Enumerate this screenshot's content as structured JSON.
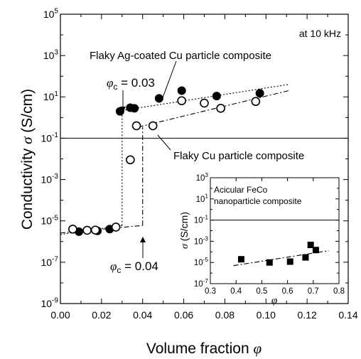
{
  "chart_data": [
    {
      "type": "scatter",
      "xlabel_text": "Volume fraction ",
      "xlabel_symbol": "φ",
      "ylabel_text": "Conductivity ",
      "ylabel_symbol": "σ",
      "ylabel_unit": " (S/cm)",
      "xlim": [
        0.0,
        0.14
      ],
      "ylim_log10": [
        -9,
        5
      ],
      "x_ticks": [
        0.0,
        0.02,
        0.04,
        0.06,
        0.08,
        0.1,
        0.12,
        0.14
      ],
      "x_tick_labels": [
        "0.00",
        "0.02",
        "0.04",
        "0.06",
        "0.08",
        "0.10",
        "0.12",
        "0.14"
      ],
      "y_ticks_log10": [
        -9,
        -7,
        -5,
        -3,
        -1,
        1,
        3,
        5
      ],
      "y_tick_bases": [
        "10",
        "10",
        "10",
        "10",
        "10",
        "10",
        "10",
        "10"
      ],
      "y_tick_exps": [
        "-9",
        "-7",
        "-5",
        "-3",
        "-1",
        "1",
        "3",
        "5"
      ],
      "reference_line_y": 0.1,
      "annotations": {
        "frequency": "at 10 kHz",
        "series1_label": "Flaky Ag-coated Cu particle composite",
        "series2_label": "Flaky Cu particle composite",
        "phic1_symbol": "φ",
        "phic1_sub": "c",
        "phic1_value": " = 0.03",
        "phic2_symbol": "φ",
        "phic2_sub": "c",
        "phic2_value": " = 0.04"
      },
      "series": [
        {
          "marker": "filled-circle",
          "x": [
            0.009,
            0.018,
            0.024,
            0.029,
            0.034,
            0.036,
            0.048,
            0.059,
            0.076,
            0.097
          ],
          "y": [
            3e-06,
            3.3e-06,
            4e-06,
            2.0,
            3.0,
            2.8,
            8.5,
            20,
            11,
            15
          ]
        },
        {
          "marker": "open-circle",
          "x": [
            0.006,
            0.013,
            0.017,
            0.027,
            0.034,
            0.037,
            0.045,
            0.059,
            0.07,
            0.078,
            0.095
          ],
          "y": [
            4e-06,
            3.5e-06,
            3.6e-06,
            5e-06,
            0.009,
            0.4,
            0.4,
            6.5,
            5,
            2.8,
            6
          ]
        }
      ],
      "fit_lines": [
        {
          "style": "dotted",
          "x": [
            0.0,
            0.03
          ],
          "y": [
            2.2e-06,
            6e-06
          ]
        },
        {
          "style": "dotted",
          "x": [
            0.03,
            0.111
          ],
          "y": [
            2.2,
            40
          ]
        },
        {
          "style": "dashdot",
          "x": [
            0.0,
            0.04
          ],
          "y": [
            2.6e-06,
            6e-06
          ]
        },
        {
          "style": "dashdot",
          "x": [
            0.038,
            0.111
          ],
          "y": [
            0.35,
            20
          ]
        }
      ],
      "transition_lines": [
        {
          "style": "dotted",
          "x": 0.03,
          "y_from": 6e-06,
          "y_to": 2.2
        },
        {
          "style": "dashdot",
          "x": 0.04,
          "y_from": 6e-06,
          "y_to": 0.35
        }
      ]
    },
    {
      "type": "scatter",
      "title_lines": [
        "Acicular FeCo",
        "nanoparticle composite"
      ],
      "xlabel_symbol": "φ",
      "ylabel_symbol": "σ",
      "ylabel_unit": " (S/cm)",
      "xlim": [
        0.3,
        0.8
      ],
      "ylim_log10": [
        -7,
        3
      ],
      "x_ticks": [
        0.3,
        0.4,
        0.5,
        0.6,
        0.7,
        0.8
      ],
      "x_tick_labels": [
        "0.3",
        "0.4",
        "0.5",
        "0.6",
        "0.7",
        "0.8"
      ],
      "y_ticks_log10": [
        -7,
        -5,
        -3,
        -1,
        1,
        3
      ],
      "y_tick_bases": [
        "10",
        "10",
        "10",
        "10",
        "10",
        "10"
      ],
      "y_tick_exps": [
        "-7",
        "-5",
        "-3",
        "-1",
        "1",
        "3"
      ],
      "reference_line_y": 0.1,
      "series": [
        {
          "marker": "filled-square",
          "x": [
            0.42,
            0.53,
            0.61,
            0.67,
            0.69,
            0.71
          ],
          "y": [
            2e-05,
            1e-05,
            1.2e-05,
            3e-05,
            0.00045,
            0.00015
          ]
        }
      ],
      "fit_lines": [
        {
          "style": "dashdot",
          "x": [
            0.39,
            0.76
          ],
          "y": [
            5e-06,
            0.00013
          ]
        }
      ]
    }
  ]
}
